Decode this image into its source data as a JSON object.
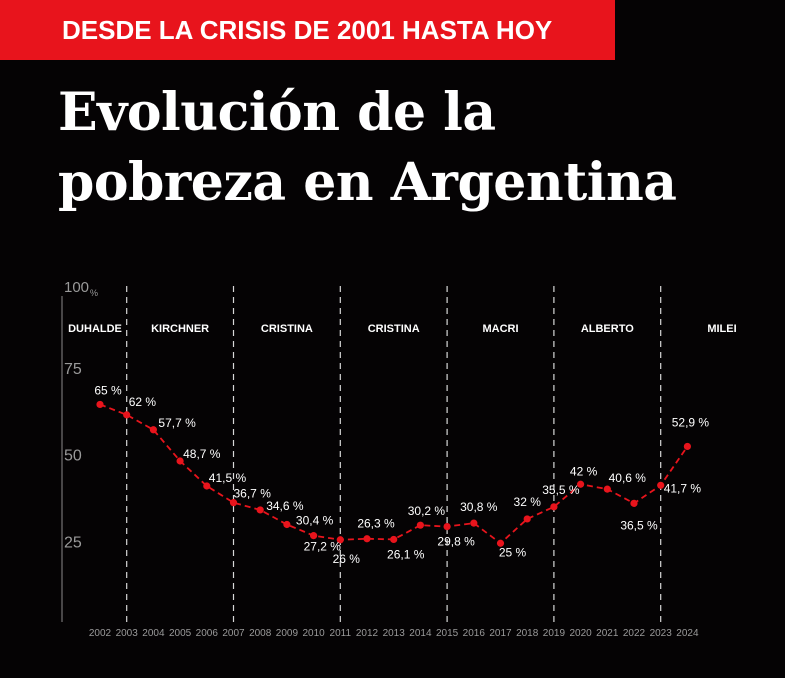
{
  "header": {
    "kicker": "DESDE LA CRISIS DE 2001 HASTA HOY",
    "title_line1": "Evolución de la",
    "title_line2": "pobreza en Argentina"
  },
  "colors": {
    "background": "#050304",
    "kicker_bg": "#e8141c",
    "line": "#e8141c",
    "text": "#ffffff",
    "axis_text": "#9a9a9a"
  },
  "chart_data": {
    "type": "line",
    "x": [
      2002,
      2003,
      2004,
      2005,
      2006,
      2007,
      2008,
      2009,
      2010,
      2011,
      2012,
      2013,
      2014,
      2015,
      2016,
      2017,
      2018,
      2019,
      2020,
      2021,
      2022,
      2023,
      2024
    ],
    "x_tick_labels": [
      "2002",
      "2003",
      "2004",
      "2005",
      "2006",
      "2007",
      "2008",
      "2009",
      "2010",
      "2011",
      "2012",
      "2013",
      "2014",
      "2015",
      "2016",
      "2017",
      "2018",
      "2019",
      "2020",
      "2021",
      "2022",
      "2023",
      "2024"
    ],
    "values": [
      65,
      62,
      57.7,
      48.7,
      41.5,
      36.7,
      34.6,
      30.4,
      27.2,
      26,
      26.3,
      26.1,
      30.2,
      29.8,
      30.8,
      25,
      32,
      35.5,
      42,
      40.6,
      36.5,
      41.7,
      52.9
    ],
    "point_labels": [
      "65 %",
      "62 %",
      "57,7 %",
      "48,7 %",
      "41,5 %",
      "36,7 %",
      "34,6 %",
      "30,4 %",
      "27,2 %",
      "26 %",
      "26,3 %",
      "26,1 %",
      "30,2 %",
      "29,8 %",
      "30,8 %",
      "25 %",
      "32 %",
      "35,5 %",
      "42 %",
      "40,6 %",
      "36,5 %",
      "41,7 %",
      "52,9 %"
    ],
    "y_ticks": [
      {
        "value": 25,
        "label": "25"
      },
      {
        "value": 50,
        "label": "50"
      },
      {
        "value": 75,
        "label": "75"
      },
      {
        "value": 100,
        "label": "100",
        "unit": "%"
      }
    ],
    "ylim": [
      0,
      100
    ],
    "line_style": "dashed",
    "grid": false,
    "periods": [
      {
        "name": "DUHALDE",
        "start": 2002,
        "end": 2003
      },
      {
        "name": "KIRCHNER",
        "start": 2003,
        "end": 2007
      },
      {
        "name": "CRISTINA",
        "start": 2007,
        "end": 2011
      },
      {
        "name": "CRISTINA",
        "start": 2011,
        "end": 2015
      },
      {
        "name": "MACRI",
        "start": 2015,
        "end": 2019
      },
      {
        "name": "ALBERTO",
        "start": 2019,
        "end": 2023
      },
      {
        "name": "MILEI",
        "start": 2023,
        "end": 2024
      }
    ],
    "period_dividers": [
      2003,
      2007,
      2011,
      2015,
      2019,
      2023
    ]
  }
}
